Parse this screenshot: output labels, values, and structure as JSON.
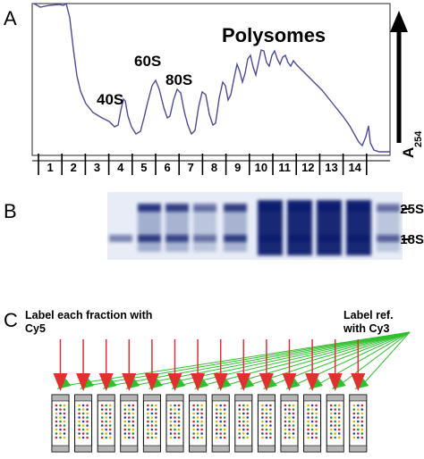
{
  "panels": {
    "a": {
      "letter": "A",
      "peaks": [
        "40S",
        "60S",
        "80S",
        "Polysomes"
      ],
      "axis_label_main": "A",
      "axis_label_sub": "254",
      "fractions": [
        "1",
        "2",
        "3",
        "4",
        "5",
        "6",
        "7",
        "8",
        "9",
        "10",
        "11",
        "12",
        "13",
        "14"
      ]
    },
    "b": {
      "letter": "B",
      "bands": [
        "25S",
        "18S"
      ],
      "lane_intensity_25S": [
        0,
        0.85,
        0.8,
        0.55,
        0.8,
        1,
        1,
        1,
        0.95,
        0.55
      ],
      "lane_intensity_18S": [
        0.5,
        0.8,
        0.75,
        0.5,
        0.8,
        1,
        1,
        1,
        0.95,
        0.6
      ]
    },
    "c": {
      "letter": "C",
      "left_label_line1": "Label each fraction with",
      "left_label_line2": "Cy5",
      "right_label_line1": "Label ref.",
      "right_label_line2": "with Cy3",
      "colors": {
        "cy5_arrow": "#e03030",
        "cy3_arrow": "#2fbf2f",
        "spot_red": "#d2242d",
        "spot_green": "#1f8f3a",
        "spot_yellow": "#d8b400",
        "spot_blue": "#2b3f9a"
      }
    }
  },
  "colors": {
    "trace": "#4b4b9a",
    "blot_band": "#0e1d6e",
    "blot_bg": "#e7ecf7"
  }
}
